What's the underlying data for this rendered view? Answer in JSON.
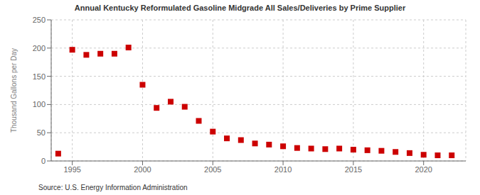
{
  "chart_data": {
    "type": "scatter",
    "title": "Annual Kentucky Reformulated Gasoline Midgrade All Sales/Deliveries by Prime Supplier",
    "y_label": "Thousand Gallons per Day",
    "annotations": [
      "Source: U.S. Energy Information Administration"
    ],
    "x": [
      1994,
      1995,
      1996,
      1997,
      1998,
      1999,
      2000,
      2001,
      2002,
      2003,
      2004,
      2005,
      2006,
      2007,
      2008,
      2009,
      2010,
      2011,
      2012,
      2013,
      2014,
      2015,
      2016,
      2017,
      2018,
      2019,
      2020,
      2021,
      2022
    ],
    "values": [
      13,
      197,
      188,
      190,
      190,
      201,
      135,
      94,
      105,
      96,
      71,
      52,
      40,
      37,
      31,
      29,
      26,
      23,
      22,
      21,
      22,
      20,
      19,
      18,
      16,
      14,
      11,
      10,
      10
    ],
    "color": "#cc0000",
    "marker": "square",
    "xlim": [
      1993.5,
      2023
    ],
    "ylim": [
      0,
      250
    ],
    "xticks": [
      1995,
      2000,
      2005,
      2010,
      2015,
      2020
    ],
    "yticks": [
      0,
      50,
      100,
      150,
      200,
      250
    ],
    "grid": true
  }
}
